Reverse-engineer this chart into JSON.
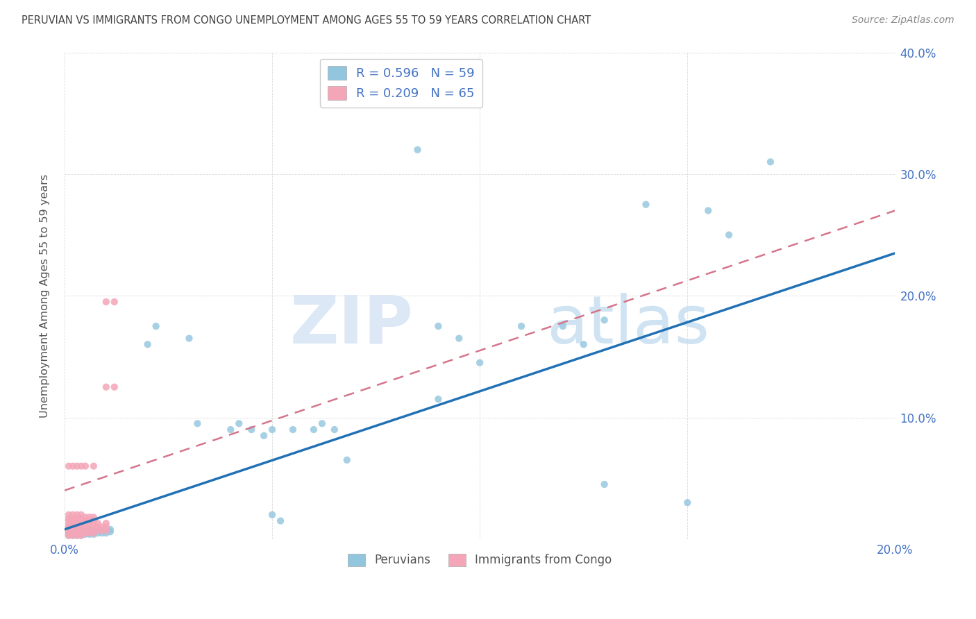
{
  "title": "PERUVIAN VS IMMIGRANTS FROM CONGO UNEMPLOYMENT AMONG AGES 55 TO 59 YEARS CORRELATION CHART",
  "source": "Source: ZipAtlas.com",
  "ylabel": "Unemployment Among Ages 55 to 59 years",
  "xlim": [
    0.0,
    0.2
  ],
  "ylim": [
    0.0,
    0.4
  ],
  "xticks": [
    0.0,
    0.05,
    0.1,
    0.15,
    0.2
  ],
  "yticks": [
    0.0,
    0.1,
    0.2,
    0.3,
    0.4
  ],
  "peruvian_color": "#92c5de",
  "congo_color": "#f4a6b8",
  "peruvian_line_color": "#2171b5",
  "congo_line_color": "#d4758a",
  "watermark_zip_color": "#dce8f5",
  "watermark_atlas_color": "#c8dff0",
  "peruvian_points": [
    [
      0.001,
      0.003
    ],
    [
      0.001,
      0.005
    ],
    [
      0.001,
      0.007
    ],
    [
      0.002,
      0.003
    ],
    [
      0.002,
      0.005
    ],
    [
      0.002,
      0.007
    ],
    [
      0.002,
      0.01
    ],
    [
      0.003,
      0.003
    ],
    [
      0.003,
      0.005
    ],
    [
      0.003,
      0.007
    ],
    [
      0.004,
      0.003
    ],
    [
      0.004,
      0.005
    ],
    [
      0.004,
      0.007
    ],
    [
      0.005,
      0.004
    ],
    [
      0.005,
      0.006
    ],
    [
      0.005,
      0.008
    ],
    [
      0.006,
      0.004
    ],
    [
      0.006,
      0.006
    ],
    [
      0.006,
      0.008
    ],
    [
      0.007,
      0.004
    ],
    [
      0.007,
      0.006
    ],
    [
      0.007,
      0.008
    ],
    [
      0.008,
      0.005
    ],
    [
      0.008,
      0.007
    ],
    [
      0.009,
      0.005
    ],
    [
      0.009,
      0.007
    ],
    [
      0.01,
      0.005
    ],
    [
      0.01,
      0.007
    ],
    [
      0.011,
      0.006
    ],
    [
      0.011,
      0.008
    ],
    [
      0.02,
      0.16
    ],
    [
      0.022,
      0.175
    ],
    [
      0.03,
      0.165
    ],
    [
      0.032,
      0.095
    ],
    [
      0.04,
      0.09
    ],
    [
      0.042,
      0.095
    ],
    [
      0.045,
      0.09
    ],
    [
      0.048,
      0.085
    ],
    [
      0.05,
      0.09
    ],
    [
      0.05,
      0.02
    ],
    [
      0.052,
      0.015
    ],
    [
      0.055,
      0.09
    ],
    [
      0.06,
      0.09
    ],
    [
      0.062,
      0.095
    ],
    [
      0.065,
      0.09
    ],
    [
      0.068,
      0.065
    ],
    [
      0.085,
      0.32
    ],
    [
      0.09,
      0.175
    ],
    [
      0.09,
      0.115
    ],
    [
      0.095,
      0.165
    ],
    [
      0.1,
      0.145
    ],
    [
      0.11,
      0.175
    ],
    [
      0.12,
      0.175
    ],
    [
      0.125,
      0.16
    ],
    [
      0.13,
      0.18
    ],
    [
      0.13,
      0.045
    ],
    [
      0.14,
      0.275
    ],
    [
      0.15,
      0.03
    ],
    [
      0.155,
      0.27
    ],
    [
      0.16,
      0.25
    ],
    [
      0.17,
      0.31
    ]
  ],
  "congo_points": [
    [
      0.001,
      0.003
    ],
    [
      0.001,
      0.005
    ],
    [
      0.001,
      0.007
    ],
    [
      0.001,
      0.01
    ],
    [
      0.001,
      0.012
    ],
    [
      0.001,
      0.015
    ],
    [
      0.001,
      0.017
    ],
    [
      0.001,
      0.02
    ],
    [
      0.002,
      0.003
    ],
    [
      0.002,
      0.005
    ],
    [
      0.002,
      0.007
    ],
    [
      0.002,
      0.01
    ],
    [
      0.002,
      0.012
    ],
    [
      0.002,
      0.015
    ],
    [
      0.002,
      0.017
    ],
    [
      0.002,
      0.02
    ],
    [
      0.003,
      0.003
    ],
    [
      0.003,
      0.005
    ],
    [
      0.003,
      0.007
    ],
    [
      0.003,
      0.01
    ],
    [
      0.003,
      0.012
    ],
    [
      0.003,
      0.015
    ],
    [
      0.003,
      0.017
    ],
    [
      0.003,
      0.02
    ],
    [
      0.004,
      0.003
    ],
    [
      0.004,
      0.005
    ],
    [
      0.004,
      0.007
    ],
    [
      0.004,
      0.01
    ],
    [
      0.004,
      0.012
    ],
    [
      0.004,
      0.015
    ],
    [
      0.004,
      0.017
    ],
    [
      0.004,
      0.02
    ],
    [
      0.005,
      0.005
    ],
    [
      0.005,
      0.008
    ],
    [
      0.005,
      0.012
    ],
    [
      0.005,
      0.015
    ],
    [
      0.005,
      0.018
    ],
    [
      0.006,
      0.005
    ],
    [
      0.006,
      0.008
    ],
    [
      0.006,
      0.012
    ],
    [
      0.006,
      0.015
    ],
    [
      0.006,
      0.018
    ],
    [
      0.007,
      0.005
    ],
    [
      0.007,
      0.008
    ],
    [
      0.007,
      0.012
    ],
    [
      0.007,
      0.015
    ],
    [
      0.007,
      0.018
    ],
    [
      0.008,
      0.007
    ],
    [
      0.008,
      0.01
    ],
    [
      0.008,
      0.013
    ],
    [
      0.009,
      0.007
    ],
    [
      0.009,
      0.01
    ],
    [
      0.01,
      0.007
    ],
    [
      0.01,
      0.01
    ],
    [
      0.01,
      0.013
    ],
    [
      0.01,
      0.125
    ],
    [
      0.012,
      0.125
    ],
    [
      0.01,
      0.195
    ],
    [
      0.012,
      0.195
    ],
    [
      0.007,
      0.06
    ],
    [
      0.005,
      0.06
    ],
    [
      0.004,
      0.06
    ],
    [
      0.003,
      0.06
    ],
    [
      0.002,
      0.06
    ],
    [
      0.001,
      0.06
    ]
  ],
  "peruvian_line_x": [
    0.0,
    0.2
  ],
  "peruvian_line_y": [
    0.008,
    0.235
  ],
  "congo_line_x": [
    0.0,
    0.2
  ],
  "congo_line_y": [
    0.04,
    0.27
  ],
  "background_color": "#ffffff",
  "grid_color": "#cccccc",
  "title_color": "#404040",
  "axis_label_color": "#4472c4"
}
